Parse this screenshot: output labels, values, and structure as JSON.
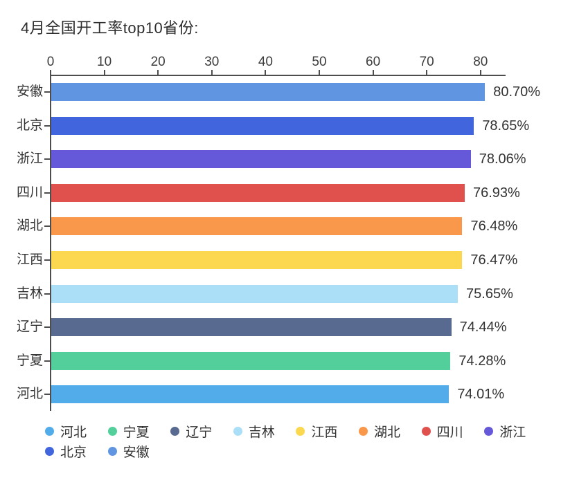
{
  "title": "4月全国开工率top10省份:",
  "chart_data": {
    "type": "bar",
    "orientation": "horizontal",
    "title": "4月全国开工率top10省份:",
    "categories": [
      "安徽",
      "北京",
      "浙江",
      "四川",
      "湖北",
      "江西",
      "吉林",
      "辽宁",
      "宁夏",
      "河北"
    ],
    "values": [
      80.7,
      78.65,
      78.06,
      76.93,
      76.48,
      76.47,
      75.65,
      74.44,
      74.28,
      74.01
    ],
    "value_labels": [
      "80.70%",
      "78.65%",
      "78.06%",
      "76.93%",
      "76.48%",
      "76.47%",
      "75.65%",
      "74.44%",
      "74.28%",
      "74.01%"
    ],
    "bar_colors": [
      "#6096E1",
      "#4165DC",
      "#6659D9",
      "#E0514E",
      "#F9974A",
      "#FBD84F",
      "#AADFF7",
      "#586A8F",
      "#52CF9B",
      "#53ACEA"
    ],
    "x_ticks": [
      "0",
      "10",
      "20",
      "30",
      "40",
      "50",
      "60",
      "70",
      "80"
    ],
    "xlim": [
      0,
      84.7
    ],
    "grid": false,
    "legend_position": "bottom",
    "legend": [
      {
        "label": "河北",
        "color": "#53ACEA"
      },
      {
        "label": "宁夏",
        "color": "#52CF9B"
      },
      {
        "label": "辽宁",
        "color": "#586A8F"
      },
      {
        "label": "吉林",
        "color": "#AADFF7"
      },
      {
        "label": "江西",
        "color": "#FBD84F"
      },
      {
        "label": "湖北",
        "color": "#F9974A"
      },
      {
        "label": "四川",
        "color": "#E0514E"
      },
      {
        "label": "浙江",
        "color": "#6659D9"
      },
      {
        "label": "北京",
        "color": "#4165DC"
      },
      {
        "label": "安徽",
        "color": "#6096E1"
      }
    ]
  }
}
